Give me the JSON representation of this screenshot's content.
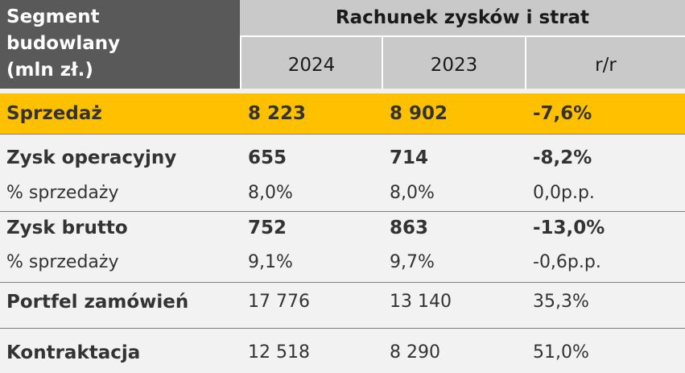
{
  "table": {
    "corner": [
      "Segment",
      "budowlany",
      "(mln zł.)"
    ],
    "title": "Rachunek zysków i strat",
    "columns": [
      "2024",
      "2023",
      "r/r"
    ],
    "rows": [
      [
        "Sprzedaż",
        "8 223",
        "8 902",
        "-7,6%"
      ],
      [
        "Zysk operacyjny",
        "655",
        "714",
        "-8,2%"
      ],
      [
        "% sprzedaży",
        "8,0%",
        "8,0%",
        "0,0p.p."
      ],
      [
        "Zysk brutto",
        "752",
        "863",
        "-13,0%"
      ],
      [
        "% sprzedaży",
        "9,1%",
        "9,7%",
        "-0,6p.p."
      ],
      [
        "Portfel zamówień",
        "17 776",
        "13 140",
        "35,3%"
      ],
      [
        "Kontraktacja",
        "12 518",
        "8 290",
        "51,0%"
      ]
    ]
  }
}
